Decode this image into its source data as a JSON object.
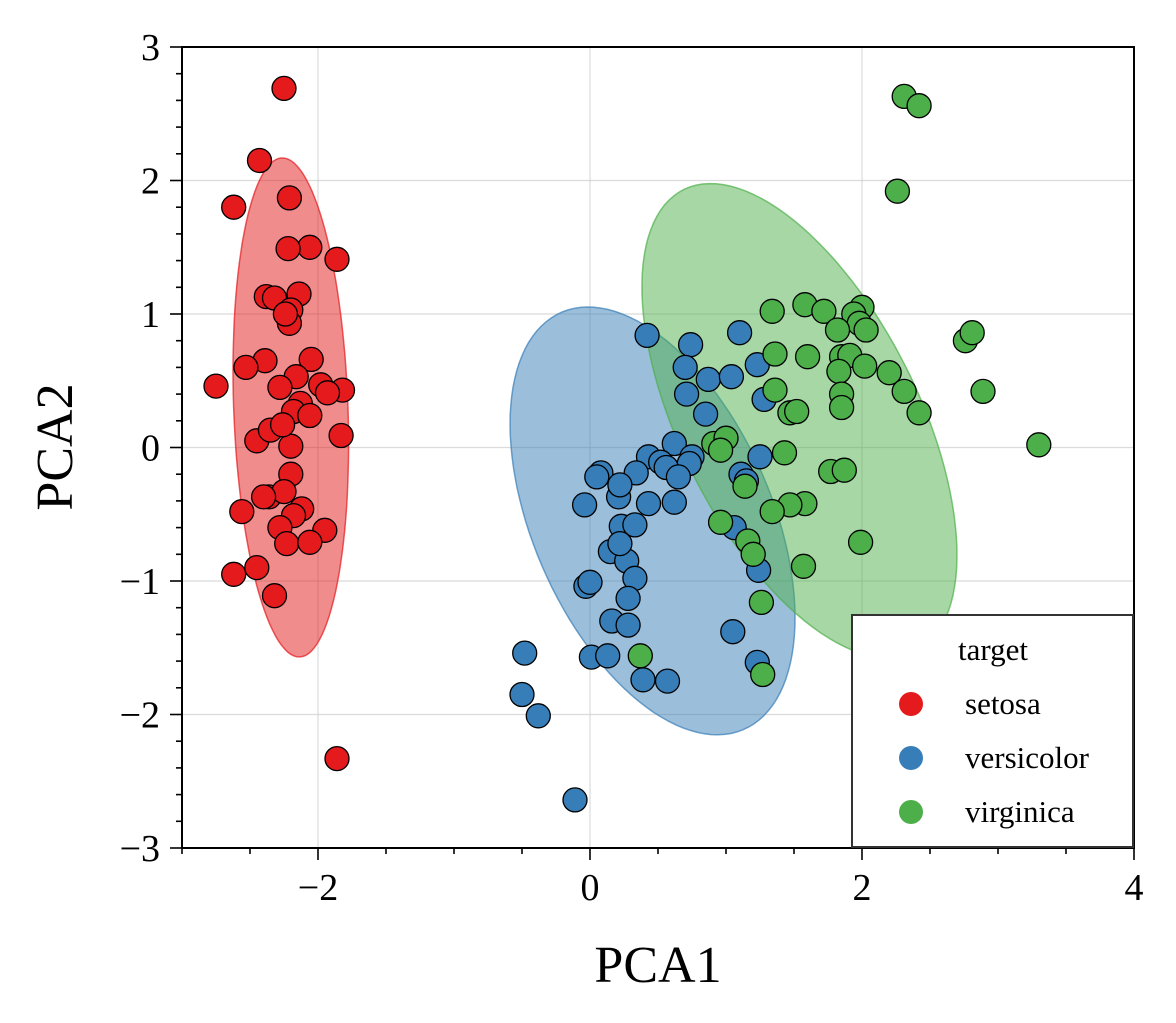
{
  "chart_data": {
    "type": "scatter",
    "title": "",
    "xlabel": "PCA1",
    "ylabel": "PCA2",
    "xlim": [
      -3,
      4
    ],
    "ylim": [
      -3,
      3
    ],
    "xticks": [
      -2,
      0,
      2,
      4
    ],
    "yticks": [
      -3,
      -2,
      -1,
      0,
      1,
      2,
      3
    ],
    "xtick_labels": [
      "−2",
      "0",
      "2",
      "4"
    ],
    "ytick_labels": [
      "−3",
      "−2",
      "−1",
      "0",
      "1",
      "2",
      "3"
    ],
    "grid": true,
    "legend": {
      "title": "target",
      "position": "lower-right"
    },
    "series": [
      {
        "name": "setosa",
        "color": "#e41a1c",
        "ellipse": {
          "cx": -2.2,
          "cy": 0.3,
          "rx": 0.42,
          "ry": 1.87,
          "angle_deg": 2
        },
        "points": [
          [
            -2.25,
            2.69
          ],
          [
            -2.43,
            2.15
          ],
          [
            -2.62,
            1.8
          ],
          [
            -2.21,
            1.87
          ],
          [
            -2.06,
            1.5
          ],
          [
            -2.22,
            1.49
          ],
          [
            -1.86,
            1.41
          ],
          [
            -2.38,
            1.13
          ],
          [
            -2.32,
            1.12
          ],
          [
            -2.14,
            1.15
          ],
          [
            -2.2,
            1.03
          ],
          [
            -2.21,
            0.93
          ],
          [
            -2.24,
            1.0
          ],
          [
            -2.05,
            0.66
          ],
          [
            -2.39,
            0.65
          ],
          [
            -2.53,
            0.6
          ],
          [
            -2.16,
            0.53
          ],
          [
            -2.28,
            0.45
          ],
          [
            -1.98,
            0.47
          ],
          [
            -1.82,
            0.43
          ],
          [
            -1.93,
            0.41
          ],
          [
            -2.13,
            0.33
          ],
          [
            -2.18,
            0.27
          ],
          [
            -2.06,
            0.24
          ],
          [
            -2.75,
            0.46
          ],
          [
            -1.83,
            0.09
          ],
          [
            -2.2,
            0.01
          ],
          [
            -2.45,
            0.05
          ],
          [
            -2.35,
            0.13
          ],
          [
            -2.26,
            0.17
          ],
          [
            -2.2,
            -0.2
          ],
          [
            -2.36,
            -0.37
          ],
          [
            -2.25,
            -0.33
          ],
          [
            -2.56,
            -0.48
          ],
          [
            -2.4,
            -0.37
          ],
          [
            -2.12,
            -0.46
          ],
          [
            -2.18,
            -0.51
          ],
          [
            -2.28,
            -0.6
          ],
          [
            -1.95,
            -0.62
          ],
          [
            -2.23,
            -0.72
          ],
          [
            -2.06,
            -0.71
          ],
          [
            -2.62,
            -0.95
          ],
          [
            -2.45,
            -0.9
          ],
          [
            -2.32,
            -1.11
          ],
          [
            -1.86,
            -2.33
          ]
        ]
      },
      {
        "name": "versicolor",
        "color": "#377eb8",
        "ellipse": {
          "cx": 0.46,
          "cy": -0.55,
          "rx": 0.88,
          "ry": 1.7,
          "angle_deg": 23
        },
        "points": [
          [
            0.42,
            0.84
          ],
          [
            1.1,
            0.86
          ],
          [
            0.74,
            0.77
          ],
          [
            0.7,
            0.6
          ],
          [
            0.87,
            0.51
          ],
          [
            1.04,
            0.53
          ],
          [
            1.23,
            0.62
          ],
          [
            0.71,
            0.4
          ],
          [
            0.85,
            0.25
          ],
          [
            1.28,
            0.36
          ],
          [
            0.62,
            0.03
          ],
          [
            0.43,
            -0.07
          ],
          [
            0.52,
            -0.11
          ],
          [
            0.75,
            -0.07
          ],
          [
            0.73,
            -0.12
          ],
          [
            0.56,
            -0.15
          ],
          [
            0.34,
            -0.19
          ],
          [
            0.65,
            -0.22
          ],
          [
            0.08,
            -0.19
          ],
          [
            0.05,
            -0.22
          ],
          [
            0.21,
            -0.37
          ],
          [
            0.43,
            -0.42
          ],
          [
            0.62,
            -0.41
          ],
          [
            0.22,
            -0.28
          ],
          [
            -0.04,
            -0.43
          ],
          [
            0.23,
            -0.59
          ],
          [
            0.33,
            -0.58
          ],
          [
            1.25,
            -0.07
          ],
          [
            1.11,
            -0.2
          ],
          [
            1.15,
            -0.25
          ],
          [
            1.06,
            -0.6
          ],
          [
            0.15,
            -0.78
          ],
          [
            0.27,
            -0.85
          ],
          [
            0.22,
            -0.72
          ],
          [
            0.33,
            -0.98
          ],
          [
            0.28,
            -1.13
          ],
          [
            -0.03,
            -1.04
          ],
          [
            0.0,
            -1.01
          ],
          [
            0.16,
            -1.3
          ],
          [
            0.28,
            -1.33
          ],
          [
            1.24,
            -0.92
          ],
          [
            1.05,
            -1.38
          ],
          [
            0.01,
            -1.57
          ],
          [
            0.13,
            -1.56
          ],
          [
            -0.48,
            -1.54
          ],
          [
            0.39,
            -1.74
          ],
          [
            0.57,
            -1.75
          ],
          [
            1.23,
            -1.61
          ],
          [
            -0.5,
            -1.85
          ],
          [
            -0.38,
            -2.01
          ],
          [
            -0.11,
            -2.64
          ]
        ]
      },
      {
        "name": "virginica",
        "color": "#4daf4a",
        "ellipse": {
          "cx": 1.54,
          "cy": 0.2,
          "rx": 0.88,
          "ry": 1.93,
          "angle_deg": 26
        },
        "points": [
          [
            2.31,
            2.63
          ],
          [
            2.42,
            2.56
          ],
          [
            2.26,
            1.92
          ],
          [
            1.34,
            1.02
          ],
          [
            1.58,
            1.07
          ],
          [
            1.72,
            1.02
          ],
          [
            2.0,
            1.05
          ],
          [
            1.94,
            1.0
          ],
          [
            1.98,
            0.93
          ],
          [
            1.82,
            0.88
          ],
          [
            2.03,
            0.88
          ],
          [
            2.76,
            0.8
          ],
          [
            2.81,
            0.86
          ],
          [
            1.36,
            0.7
          ],
          [
            1.6,
            0.68
          ],
          [
            1.85,
            0.68
          ],
          [
            1.91,
            0.69
          ],
          [
            1.83,
            0.57
          ],
          [
            2.02,
            0.61
          ],
          [
            2.2,
            0.56
          ],
          [
            1.85,
            0.4
          ],
          [
            1.36,
            0.43
          ],
          [
            2.31,
            0.42
          ],
          [
            2.89,
            0.42
          ],
          [
            1.85,
            0.3
          ],
          [
            1.47,
            0.26
          ],
          [
            1.52,
            0.27
          ],
          [
            2.42,
            0.26
          ],
          [
            3.3,
            0.02
          ],
          [
            0.91,
            0.03
          ],
          [
            1.0,
            0.07
          ],
          [
            0.96,
            -0.02
          ],
          [
            1.43,
            -0.04
          ],
          [
            1.77,
            -0.18
          ],
          [
            1.87,
            -0.17
          ],
          [
            1.14,
            -0.29
          ],
          [
            1.58,
            -0.42
          ],
          [
            1.47,
            -0.43
          ],
          [
            1.34,
            -0.48
          ],
          [
            0.96,
            -0.56
          ],
          [
            1.16,
            -0.7
          ],
          [
            1.2,
            -0.8
          ],
          [
            1.99,
            -0.71
          ],
          [
            1.57,
            -0.89
          ],
          [
            1.26,
            -1.16
          ],
          [
            0.37,
            -1.56
          ],
          [
            1.27,
            -1.7
          ]
        ]
      }
    ]
  }
}
